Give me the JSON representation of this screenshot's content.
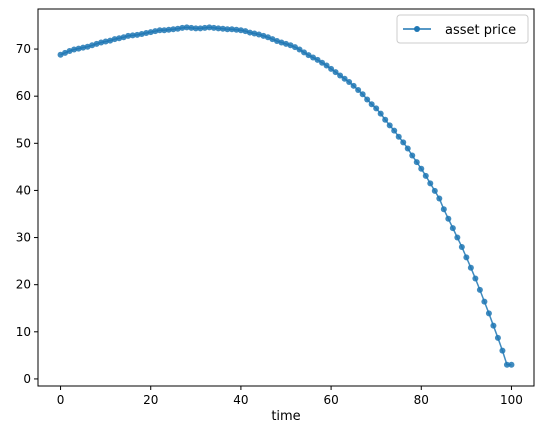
{
  "chart_data": {
    "type": "line",
    "title": "",
    "xlabel": "time",
    "ylabel": "",
    "xlim": [
      -5,
      105
    ],
    "ylim": [
      -1.5,
      78.5
    ],
    "xticks": [
      0,
      20,
      40,
      60,
      80,
      100
    ],
    "yticks": [
      0,
      10,
      20,
      30,
      40,
      50,
      60,
      70
    ],
    "grid": false,
    "legend_position": "top-right",
    "line_color": "#1f77b4",
    "series": [
      {
        "name": "asset price",
        "marker": "circle",
        "x": [
          0,
          1,
          2,
          3,
          4,
          5,
          6,
          7,
          8,
          9,
          10,
          11,
          12,
          13,
          14,
          15,
          16,
          17,
          18,
          19,
          20,
          21,
          22,
          23,
          24,
          25,
          26,
          27,
          28,
          29,
          30,
          31,
          32,
          33,
          34,
          35,
          36,
          37,
          38,
          39,
          40,
          41,
          42,
          43,
          44,
          45,
          46,
          47,
          48,
          49,
          50,
          51,
          52,
          53,
          54,
          55,
          56,
          57,
          58,
          59,
          60,
          61,
          62,
          63,
          64,
          65,
          66,
          67,
          68,
          69,
          70,
          71,
          72,
          73,
          74,
          75,
          76,
          77,
          78,
          79,
          80,
          81,
          82,
          83,
          84,
          85,
          86,
          87,
          88,
          89,
          90,
          91,
          92,
          93,
          94,
          95,
          96,
          97,
          98,
          99,
          100
        ],
        "values": [
          68.8,
          69.2,
          69.6,
          69.9,
          70.1,
          70.3,
          70.5,
          70.8,
          71.1,
          71.4,
          71.6,
          71.8,
          72.1,
          72.3,
          72.5,
          72.8,
          72.9,
          73.0,
          73.2,
          73.4,
          73.6,
          73.8,
          74.0,
          74.0,
          74.1,
          74.2,
          74.3,
          74.5,
          74.6,
          74.5,
          74.4,
          74.4,
          74.5,
          74.6,
          74.5,
          74.4,
          74.3,
          74.2,
          74.2,
          74.1,
          74.0,
          73.8,
          73.5,
          73.3,
          73.1,
          72.8,
          72.5,
          72.1,
          71.7,
          71.4,
          71.1,
          70.8,
          70.4,
          69.9,
          69.3,
          68.7,
          68.2,
          67.7,
          67.1,
          66.5,
          65.8,
          65.1,
          64.4,
          63.7,
          63.0,
          62.2,
          61.3,
          60.4,
          59.3,
          58.3,
          57.4,
          56.3,
          55.0,
          53.8,
          52.7,
          51.4,
          50.2,
          48.9,
          47.4,
          46.0,
          44.6,
          43.1,
          41.5,
          39.9,
          38.3,
          36.0,
          34.0,
          32.0,
          30.0,
          28.0,
          25.8,
          23.6,
          21.3,
          18.9,
          16.4,
          13.9,
          11.3,
          8.7,
          6.0,
          3.0,
          3.0
        ]
      }
    ]
  }
}
